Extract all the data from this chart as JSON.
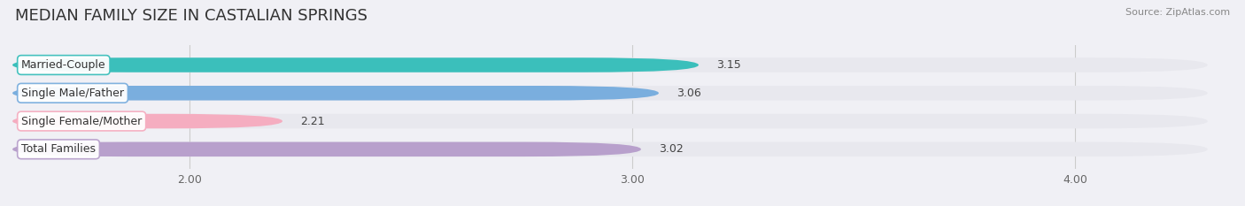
{
  "title": "MEDIAN FAMILY SIZE IN CASTALIAN SPRINGS",
  "source": "Source: ZipAtlas.com",
  "categories": [
    "Married-Couple",
    "Single Male/Father",
    "Single Female/Mother",
    "Total Families"
  ],
  "values": [
    3.15,
    3.06,
    2.21,
    3.02
  ],
  "bar_colors": [
    "#3bbfbb",
    "#7aaede",
    "#f5adc0",
    "#b8a0cc"
  ],
  "label_bg_color": "#ffffff",
  "label_border_colors": [
    "#3bbfbb",
    "#7aaede",
    "#f5adc0",
    "#b8a0cc"
  ],
  "track_color": "#e8e8ee",
  "xlim": [
    1.6,
    4.3
  ],
  "xmin": 0.0,
  "xmax": 4.3,
  "xticks": [
    2.0,
    3.0,
    4.0
  ],
  "xtick_labels": [
    "2.00",
    "3.00",
    "4.00"
  ],
  "bar_height": 0.52,
  "figsize": [
    14.06,
    2.33
  ],
  "dpi": 100,
  "background_color": "#f0f0f5",
  "title_fontsize": 13,
  "label_fontsize": 9,
  "value_fontsize": 9,
  "tick_fontsize": 9
}
